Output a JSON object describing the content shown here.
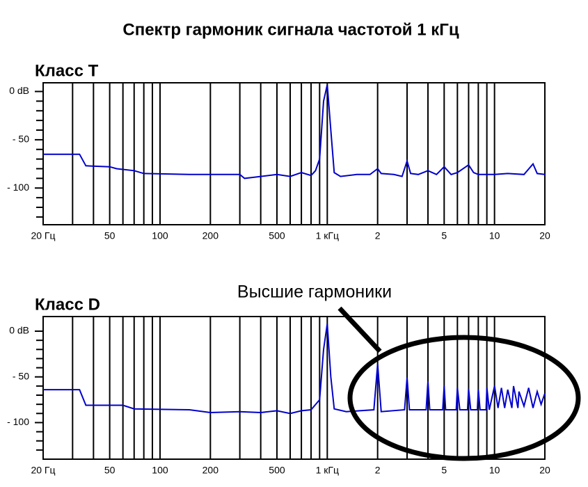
{
  "title": "Спектр гармоник сигнала частотой 1 кГц",
  "annotation": "Высшие гармоники",
  "chart_data": [
    {
      "type": "line",
      "title": "Класс T",
      "xscale": "log",
      "color": "#0000cc",
      "x": [
        20,
        33,
        36,
        50,
        55,
        70,
        80,
        150,
        300,
        320,
        500,
        600,
        700,
        800,
        850,
        900,
        950,
        1000,
        1050,
        1100,
        1200,
        1500,
        1800,
        2000,
        2100,
        2500,
        2800,
        3000,
        3150,
        3500,
        4000,
        4500,
        5000,
        5500,
        6000,
        7000,
        7500,
        8000,
        10000,
        12000,
        15000,
        17000,
        18000,
        20000
      ],
      "values": [
        -65,
        -65,
        -77,
        -78,
        -80,
        -82,
        -85,
        -86,
        -86,
        -90,
        -86,
        -88,
        -84,
        -87,
        -82,
        -70,
        -10,
        7,
        -40,
        -84,
        -88,
        -86,
        -86,
        -80,
        -85,
        -86,
        -88,
        -72,
        -85,
        -86,
        -82,
        -86,
        -78,
        -86,
        -84,
        -76,
        -84,
        -86,
        -86,
        -85,
        -86,
        -75,
        -85,
        -86
      ],
      "xlim": [
        20,
        20000
      ],
      "xticks": [
        {
          "value": 20,
          "label": "20 Гц"
        },
        50,
        100,
        200,
        500,
        {
          "value": 1000,
          "label": "1 кГц"
        },
        {
          "value": 2000,
          "label": "2"
        },
        {
          "value": 5000,
          "label": "5"
        },
        {
          "value": 10000,
          "label": "10"
        },
        {
          "value": 20000,
          "label": "20"
        }
      ],
      "xgrid": [
        30,
        40,
        60,
        70,
        80,
        90,
        300,
        400,
        600,
        700,
        800,
        900,
        3000,
        4000,
        6000,
        7000,
        8000,
        9000
      ],
      "ylim": [
        -138,
        9
      ],
      "yticks": [
        {
          "value": 0,
          "label": "0 dB"
        },
        {
          "value": -50,
          "label": "- 50"
        },
        {
          "value": -100,
          "label": "- 100"
        }
      ],
      "yminor": [
        -10,
        -20,
        -30,
        -40,
        -60,
        -70,
        -80,
        -90,
        -110,
        -120,
        -130
      ]
    },
    {
      "type": "line",
      "title": "Класс D",
      "xscale": "log",
      "color": "#0000cc",
      "x": [
        20,
        33,
        36,
        60,
        70,
        150,
        200,
        300,
        400,
        500,
        600,
        700,
        800,
        900,
        950,
        1000,
        1050,
        1100,
        1300,
        1900,
        2000,
        2100,
        2900,
        3000,
        3100,
        3900,
        4000,
        4100,
        4900,
        5000,
        5100,
        5900,
        6000,
        6200,
        6900,
        7000,
        7200,
        7900,
        8000,
        8200,
        8900,
        9000,
        9300,
        10000,
        10500,
        11000,
        11500,
        12000,
        12700,
        13000,
        13800,
        14000,
        15000,
        16000,
        17000,
        18000,
        19000,
        20000
      ],
      "values": [
        -64,
        -64,
        -81,
        -81,
        -85,
        -86,
        -89,
        -88,
        -89,
        -87,
        -90,
        -87,
        -86,
        -75,
        -20,
        8,
        -50,
        -85,
        -88,
        -86,
        -36,
        -88,
        -86,
        -51,
        -86,
        -86,
        -55,
        -86,
        -86,
        -60,
        -86,
        -86,
        -62,
        -86,
        -86,
        -63,
        -86,
        -86,
        -64,
        -86,
        -86,
        -62,
        -86,
        -60,
        -84,
        -62,
        -84,
        -64,
        -84,
        -60,
        -84,
        -66,
        -82,
        -62,
        -84,
        -66,
        -80,
        -68
      ],
      "xlim": [
        20,
        20000
      ],
      "xticks": [
        {
          "value": 20,
          "label": "20 Гц"
        },
        50,
        100,
        200,
        500,
        {
          "value": 1000,
          "label": "1 кГц"
        },
        {
          "value": 2000,
          "label": "2"
        },
        {
          "value": 5000,
          "label": "5"
        },
        {
          "value": 10000,
          "label": "10"
        },
        {
          "value": 20000,
          "label": "20"
        }
      ],
      "xgrid": [
        30,
        40,
        60,
        70,
        80,
        90,
        300,
        400,
        600,
        700,
        800,
        900,
        3000,
        4000,
        6000,
        7000,
        8000,
        9000
      ],
      "ylim": [
        -140,
        16
      ],
      "yticks": [
        {
          "value": 0,
          "label": "0 dB"
        },
        {
          "value": -50,
          "label": "- 50"
        },
        {
          "value": -100,
          "label": "- 100"
        }
      ],
      "yminor": [
        -10,
        -20,
        -30,
        -40,
        -60,
        -70,
        -80,
        -90,
        -110,
        -120,
        -130
      ]
    }
  ]
}
